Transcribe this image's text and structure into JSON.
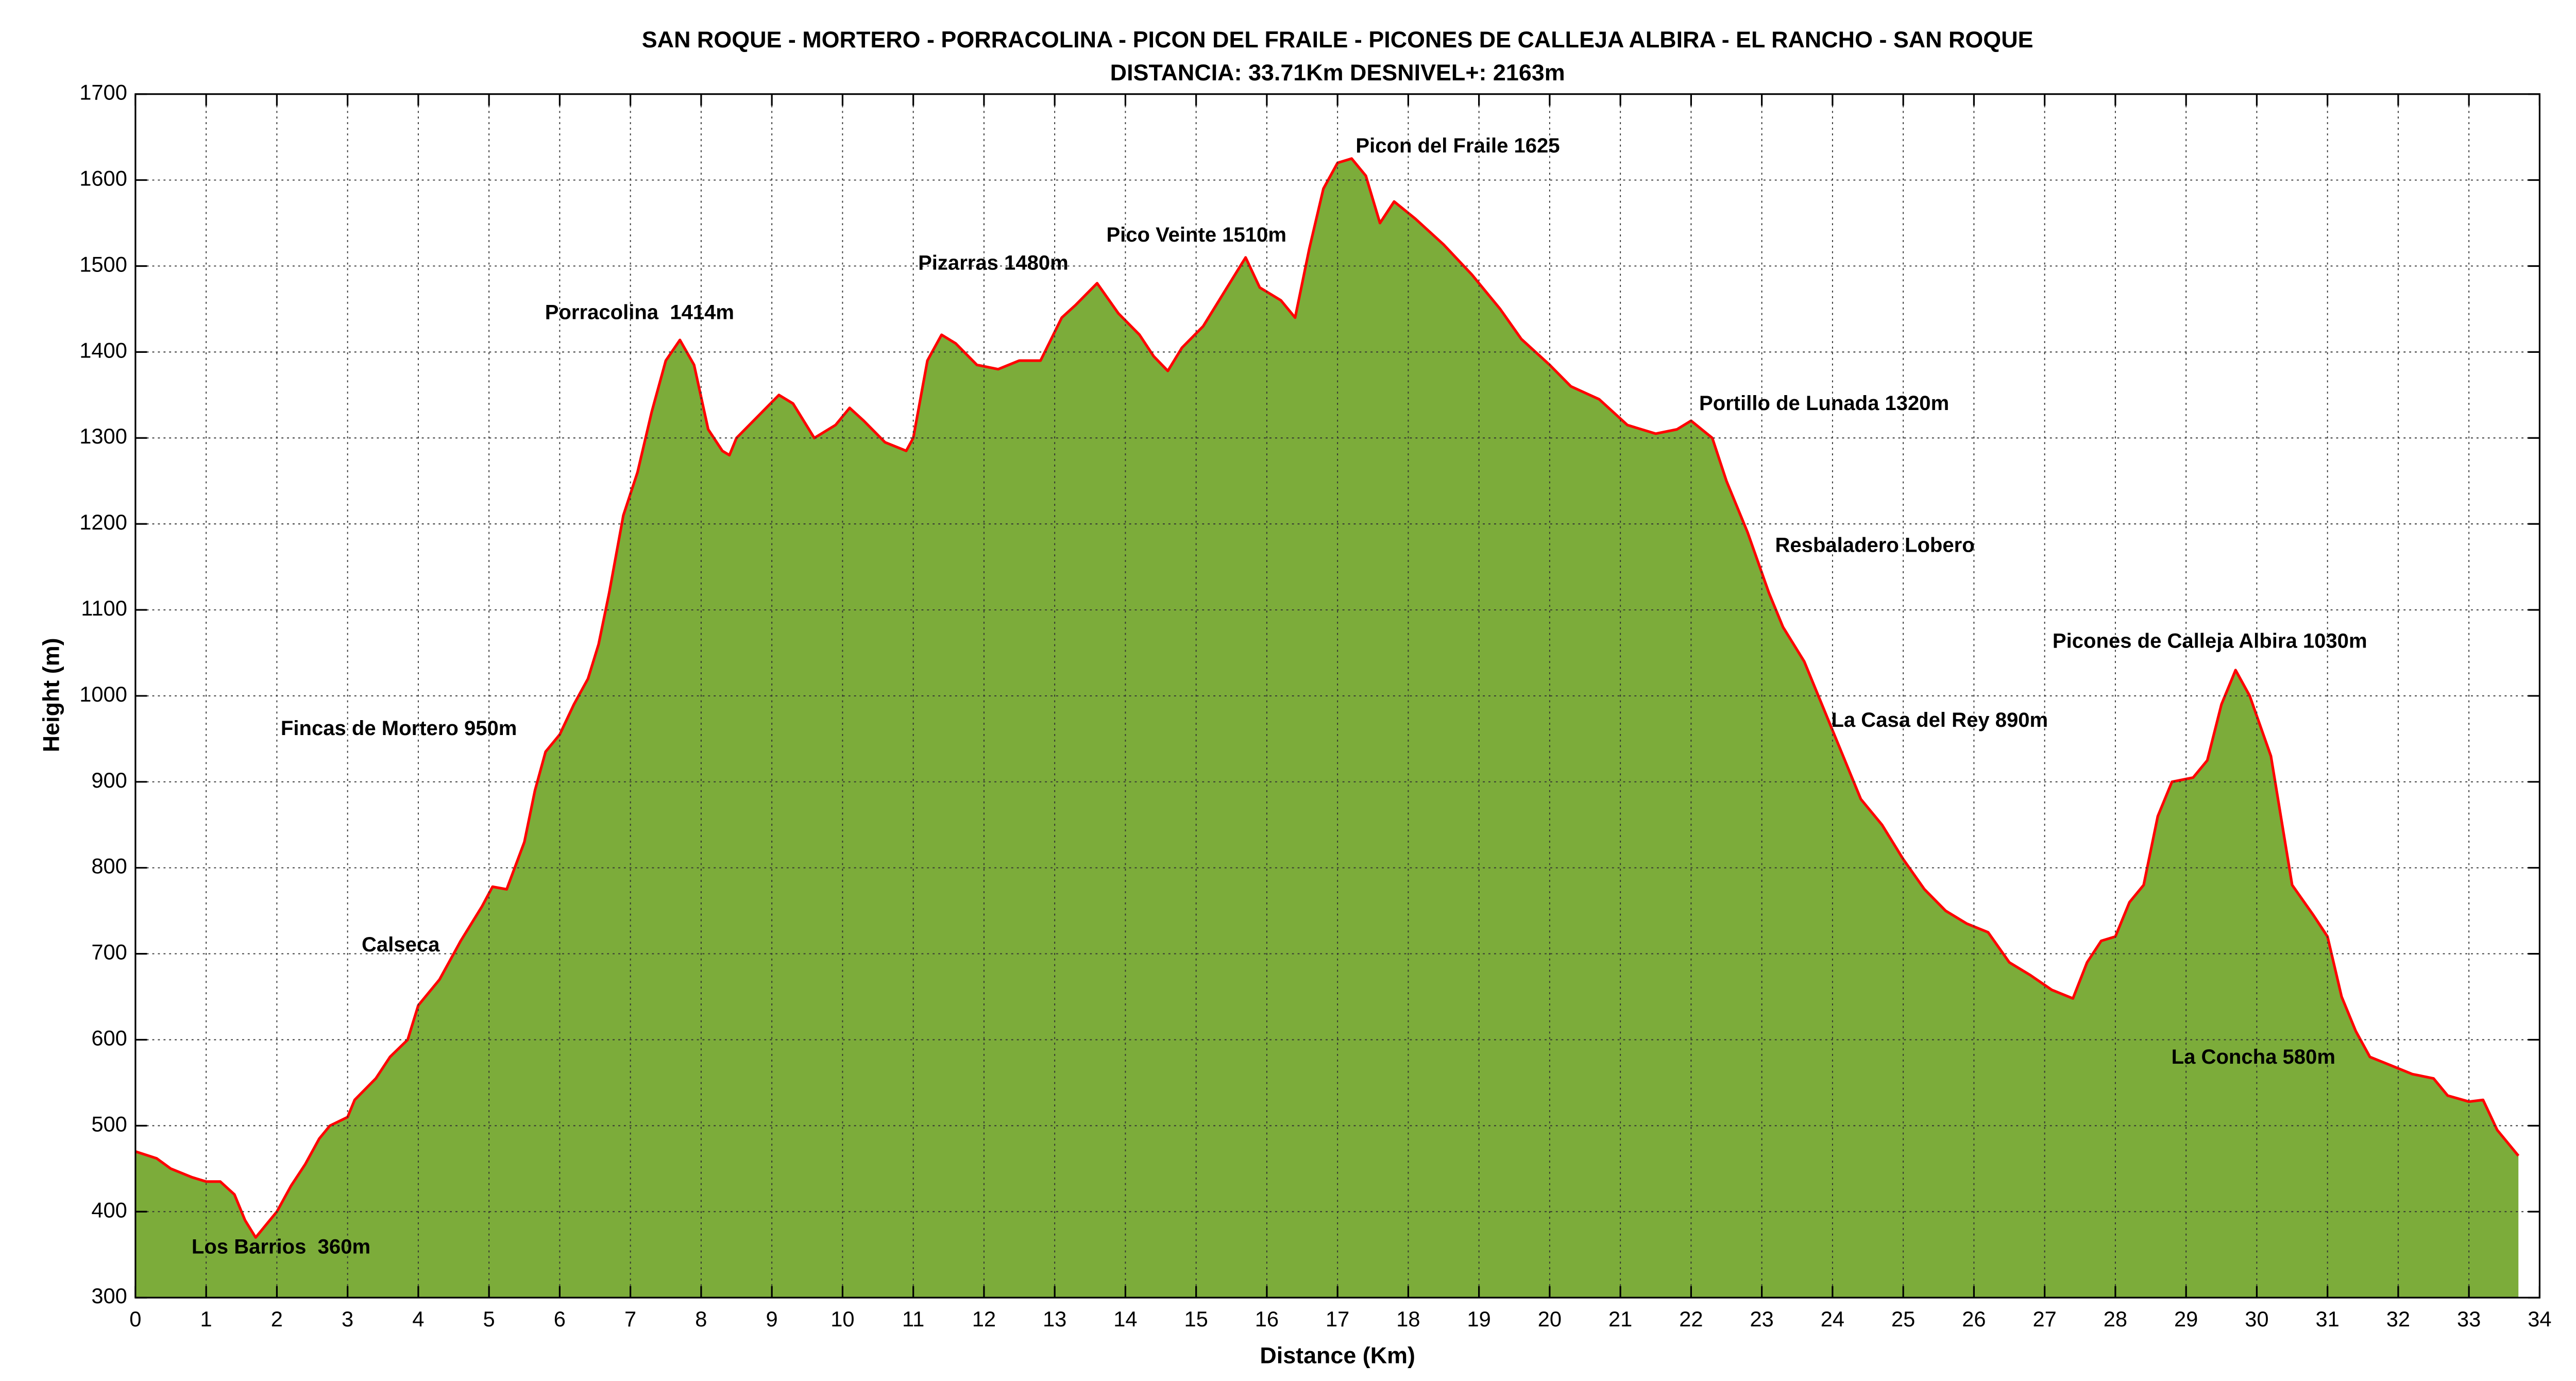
{
  "chart_data": {
    "type": "area",
    "title": "SAN ROQUE - MORTERO - PORRACOLINA - PICON DEL FRAILE - PICONES DE CALLEJA ALBIRA - EL RANCHO - SAN ROQUE",
    "subtitle": "DISTANCIA: 33.71Km    DESNIVEL+: 2163m",
    "x_label": "Distance (Km)",
    "y_label": "Height (m)",
    "x": [
      0,
      0.3,
      0.5,
      0.8,
      1.0,
      1.2,
      1.4,
      1.55,
      1.7,
      1.85,
      2.0,
      2.2,
      2.4,
      2.6,
      2.75,
      3.0,
      3.1,
      3.4,
      3.6,
      3.85,
      4.0,
      4.3,
      4.6,
      4.9,
      5.05,
      5.25,
      5.5,
      5.65,
      5.8,
      6.0,
      6.2,
      6.4,
      6.55,
      6.7,
      6.9,
      7.1,
      7.3,
      7.5,
      7.7,
      7.9,
      8.1,
      8.3,
      8.4,
      8.5,
      8.8,
      9.1,
      9.3,
      9.6,
      9.9,
      10.1,
      10.3,
      10.6,
      10.9,
      11.0,
      11.2,
      11.4,
      11.6,
      11.9,
      12.2,
      12.5,
      12.8,
      13.1,
      13.3,
      13.6,
      13.9,
      14.2,
      14.4,
      14.6,
      14.8,
      15.1,
      15.4,
      15.7,
      15.9,
      16.2,
      16.4,
      16.6,
      16.8,
      17.0,
      17.2,
      17.4,
      17.6,
      17.8,
      18.1,
      18.5,
      18.9,
      19.3,
      19.6,
      20.0,
      20.3,
      20.7,
      21.1,
      21.5,
      21.8,
      22.0,
      22.3,
      22.5,
      22.8,
      23.1,
      23.3,
      23.6,
      23.9,
      24.2,
      24.4,
      24.7,
      25.0,
      25.3,
      25.6,
      25.9,
      26.2,
      26.5,
      26.8,
      27.1,
      27.4,
      27.6,
      27.8,
      28.0,
      28.2,
      28.4,
      28.6,
      28.8,
      29.1,
      29.3,
      29.5,
      29.7,
      29.9,
      30.2,
      30.5,
      30.8,
      31.0,
      31.2,
      31.4,
      31.6,
      31.9,
      32.2,
      32.5,
      32.7,
      33.0,
      33.2,
      33.4,
      33.7
    ],
    "series": [
      {
        "name": "Height",
        "color": "#7cac3a",
        "line_color": "#ff0000",
        "values": [
          470,
          462,
          450,
          440,
          435,
          435,
          420,
          390,
          370,
          385,
          400,
          430,
          455,
          485,
          500,
          510,
          530,
          555,
          580,
          600,
          640,
          670,
          715,
          755,
          778,
          775,
          830,
          890,
          935,
          955,
          990,
          1020,
          1060,
          1120,
          1210,
          1260,
          1330,
          1390,
          1414,
          1385,
          1310,
          1285,
          1280,
          1300,
          1325,
          1350,
          1340,
          1300,
          1315,
          1335,
          1320,
          1295,
          1285,
          1300,
          1390,
          1420,
          1410,
          1385,
          1380,
          1390,
          1390,
          1440,
          1455,
          1480,
          1445,
          1420,
          1395,
          1378,
          1405,
          1430,
          1470,
          1510,
          1475,
          1460,
          1440,
          1520,
          1590,
          1620,
          1625,
          1605,
          1550,
          1575,
          1555,
          1525,
          1490,
          1450,
          1415,
          1385,
          1360,
          1345,
          1315,
          1305,
          1310,
          1320,
          1300,
          1250,
          1190,
          1120,
          1080,
          1040,
          980,
          920,
          880,
          850,
          810,
          775,
          750,
          735,
          725,
          690,
          675,
          658,
          648,
          690,
          715,
          720,
          760,
          780,
          860,
          900,
          905,
          925,
          990,
          1030,
          1000,
          930,
          780,
          745,
          720,
          650,
          610,
          580,
          570,
          560,
          555,
          535,
          528,
          530,
          495,
          465
        ]
      }
    ],
    "xlim": [
      0,
      34
    ],
    "ylim": [
      300,
      1700
    ],
    "xticks": [
      0,
      1,
      2,
      3,
      4,
      5,
      6,
      7,
      8,
      9,
      10,
      11,
      12,
      13,
      14,
      15,
      16,
      17,
      18,
      19,
      20,
      21,
      22,
      23,
      24,
      25,
      26,
      27,
      28,
      29,
      30,
      31,
      32,
      33,
      34
    ],
    "yticks": [
      300,
      400,
      500,
      600,
      700,
      800,
      900,
      1000,
      1100,
      1200,
      1300,
      1400,
      1500,
      1600,
      1700
    ],
    "grid": true,
    "annotations": [
      "Picon del Fraile 1625",
      "Pico Veinte 1510m",
      "Pizarras 1480m",
      "Porracolina  1414m",
      "Portillo de Lunada 1320m",
      "Resbaladero Lobero",
      "Picones de Calleja Albira 1030m",
      "La Casa del Rey 890m",
      "Fincas de Mortero 950m",
      "Calseca",
      "La Concha 580m",
      "Los Barrios  360m"
    ]
  }
}
